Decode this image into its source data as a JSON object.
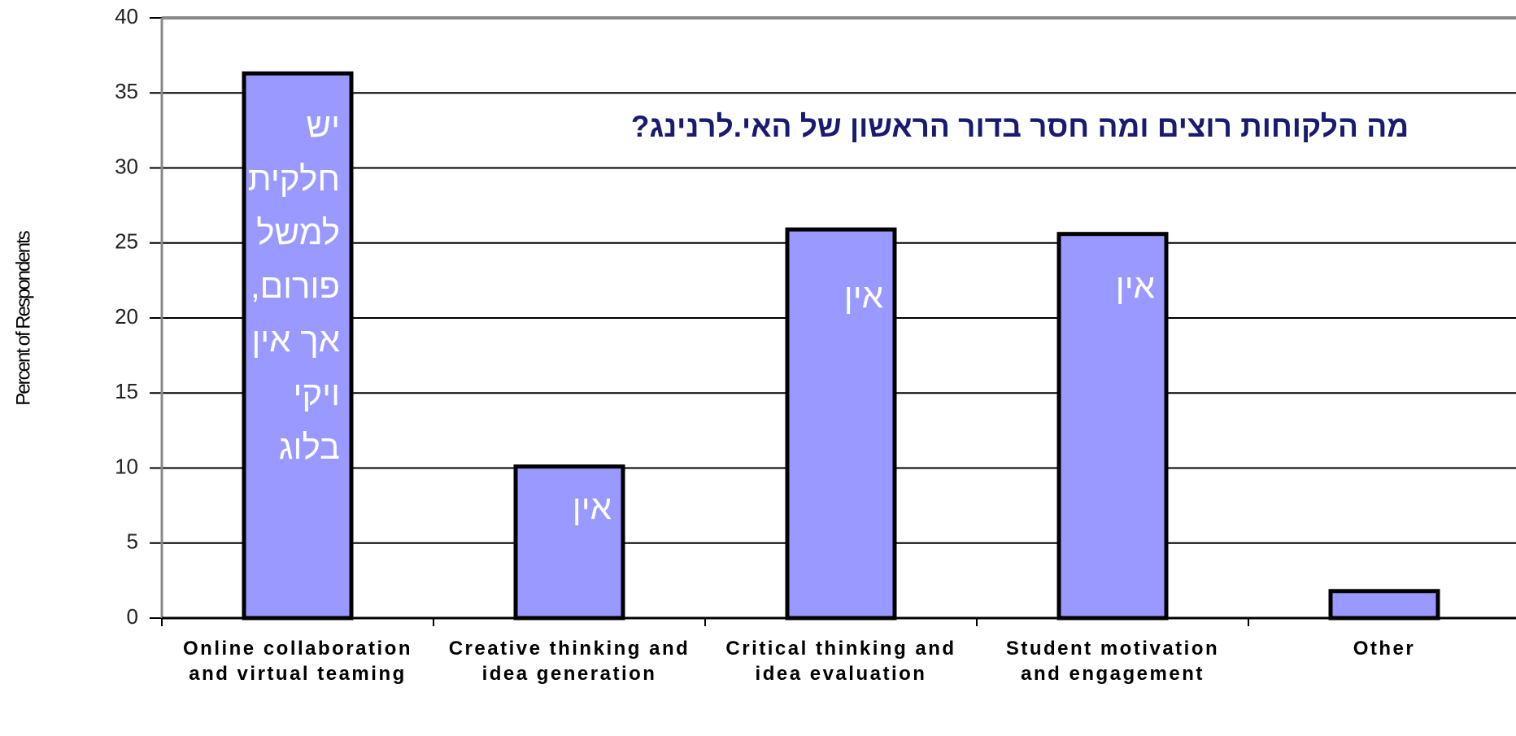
{
  "chart_data": {
    "type": "bar",
    "title": "מה הלקוחות רוצים ומה חסר בדור הראשון של האי.לרנינג?",
    "y_label": "Percent of Respondents",
    "categories": [
      "Online collaboration and virtual teaming",
      "Creative thinking and idea generation",
      "Critical thinking and idea evaluation",
      "Student motivation and engagement",
      "Other"
    ],
    "values": [
      36.3,
      10.1,
      25.9,
      25.6,
      1.8
    ],
    "annotations": [
      [
        "יש",
        "חלקית",
        "למשל",
        "פורום,",
        "אך אין",
        "ויקי",
        "בלוג"
      ],
      [
        "אין"
      ],
      [
        "אין"
      ],
      [
        "אין"
      ],
      []
    ],
    "color": "#9999ff",
    "ylim": [
      0,
      40
    ],
    "yticks": [
      0,
      5,
      10,
      15,
      20,
      25,
      30,
      35,
      40
    ],
    "grid": true
  }
}
